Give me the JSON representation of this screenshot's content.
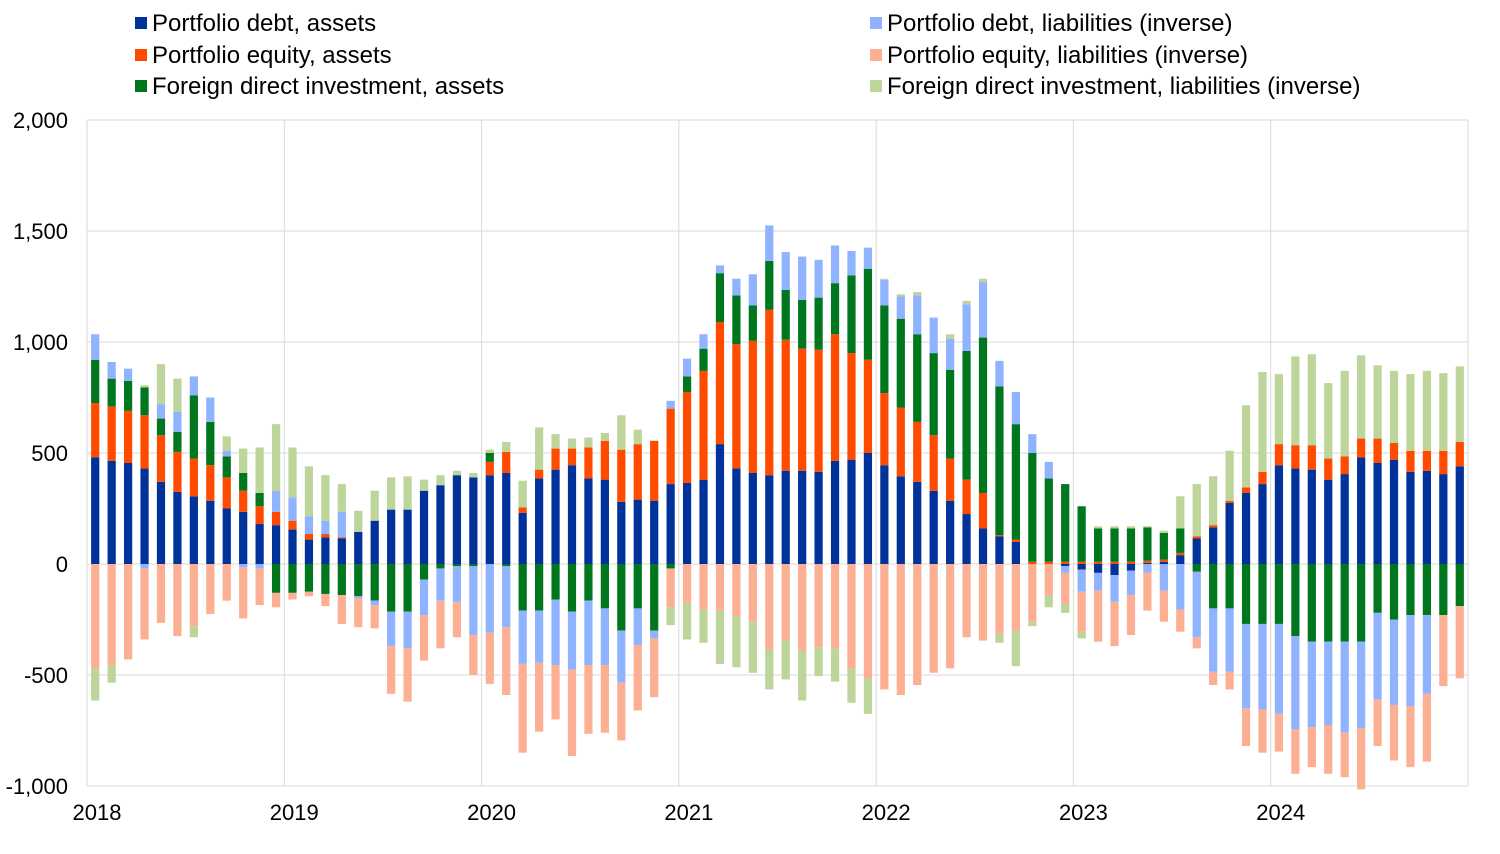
{
  "chart_data": {
    "type": "bar",
    "stacked": true,
    "ylim": [
      -1000,
      2000
    ],
    "y_ticks": [
      2000,
      1500,
      1000,
      500,
      0,
      -500,
      -1000
    ],
    "y_tick_labels": [
      "2,000",
      "1,500",
      "1,000",
      "500",
      "0",
      "-500",
      "-1,000"
    ],
    "x_tick_labels": [
      "2018",
      "2019",
      "2020",
      "2021",
      "2022",
      "2023",
      "2024"
    ],
    "grid": true,
    "legend_position": "top",
    "periods_per_year": 12,
    "series": [
      {
        "name": "Portfolio debt, assets",
        "color": "#003299",
        "values": [
          480,
          465,
          455,
          430,
          370,
          325,
          305,
          285,
          250,
          235,
          180,
          175,
          155,
          110,
          120,
          115,
          145,
          195,
          245,
          245,
          330,
          355,
          400,
          390,
          400,
          410,
          230,
          385,
          425,
          445,
          385,
          380,
          280,
          290,
          285,
          360,
          365,
          380,
          540,
          430,
          410,
          400,
          420,
          420,
          415,
          465,
          470,
          500,
          445,
          395,
          370,
          330,
          285,
          225,
          160,
          125,
          100,
          0,
          0,
          -10,
          -25,
          -40,
          -50,
          -30,
          5,
          10,
          40,
          115,
          165,
          275,
          320,
          360,
          445,
          430,
          425,
          380,
          405,
          480,
          455,
          470,
          415,
          420,
          405,
          440
        ]
      },
      {
        "name": "Portfolio equity, assets",
        "color": "#FF4B00",
        "values": [
          245,
          245,
          235,
          240,
          210,
          180,
          170,
          160,
          140,
          95,
          80,
          60,
          40,
          25,
          15,
          5,
          0,
          0,
          0,
          0,
          0,
          0,
          0,
          0,
          60,
          95,
          25,
          40,
          95,
          75,
          140,
          175,
          235,
          250,
          270,
          340,
          410,
          490,
          550,
          560,
          595,
          745,
          590,
          550,
          550,
          570,
          480,
          420,
          325,
          310,
          270,
          250,
          190,
          155,
          160,
          5,
          10,
          10,
          10,
          10,
          10,
          10,
          10,
          10,
          10,
          10,
          10,
          10,
          10,
          10,
          25,
          55,
          95,
          105,
          110,
          95,
          80,
          85,
          110,
          75,
          95,
          90,
          105,
          110
        ]
      },
      {
        "name": "Foreign direct investment, assets",
        "color": "#00771F",
        "values": [
          195,
          125,
          135,
          125,
          75,
          90,
          285,
          195,
          95,
          80,
          60,
          -130,
          -130,
          -125,
          -135,
          -140,
          -145,
          -165,
          -215,
          -215,
          -70,
          -20,
          -10,
          -10,
          40,
          -10,
          -210,
          -210,
          -160,
          -215,
          -165,
          -200,
          -300,
          -200,
          -300,
          -20,
          70,
          100,
          220,
          220,
          160,
          220,
          225,
          220,
          235,
          230,
          350,
          410,
          395,
          400,
          395,
          370,
          400,
          580,
          700,
          670,
          520,
          490,
          375,
          350,
          250,
          150,
          150,
          150,
          150,
          120,
          110,
          -35,
          -200,
          -200,
          -270,
          -270,
          -270,
          -325,
          -350,
          -350,
          -350,
          -350,
          -220,
          -250,
          -230,
          -230,
          -230,
          -190
        ]
      },
      {
        "name": "Portfolio debt, liabilities (inverse)",
        "color": "#8FB3FF",
        "values": [
          115,
          75,
          55,
          -20,
          65,
          90,
          85,
          110,
          25,
          -15,
          -20,
          95,
          105,
          80,
          60,
          115,
          -10,
          -20,
          -155,
          -165,
          -160,
          -145,
          -160,
          -310,
          -310,
          -275,
          -240,
          -235,
          -295,
          -260,
          -290,
          -255,
          -235,
          -165,
          -35,
          35,
          80,
          65,
          35,
          75,
          140,
          160,
          170,
          195,
          170,
          170,
          110,
          95,
          115,
          100,
          175,
          160,
          140,
          210,
          250,
          115,
          145,
          85,
          75,
          -30,
          -100,
          -80,
          -120,
          -110,
          -40,
          -120,
          -205,
          -295,
          -285,
          -285,
          -380,
          -385,
          -405,
          -420,
          -385,
          -375,
          -410,
          -390,
          -390,
          -385,
          -410,
          -355
        ]
      },
      {
        "name": "Portfolio equity, liabilities (inverse)",
        "color": "#FDAF93",
        "values": [
          -470,
          -455,
          -430,
          -320,
          -265,
          -325,
          -280,
          -225,
          -165,
          -230,
          -165,
          -65,
          -30,
          -20,
          -55,
          -130,
          -130,
          -105,
          -215,
          -240,
          -205,
          -215,
          -160,
          -180,
          -230,
          -305,
          -400,
          -310,
          -245,
          -390,
          -310,
          -305,
          -260,
          -295,
          -265,
          -175,
          -175,
          -205,
          -210,
          -235,
          -260,
          -385,
          -345,
          -390,
          -375,
          -380,
          -470,
          -515,
          -565,
          -590,
          -545,
          -490,
          -470,
          -330,
          -345,
          -315,
          -300,
          -260,
          -140,
          -140,
          -180,
          -230,
          -200,
          -180,
          -170,
          -140,
          -100,
          -50,
          -60,
          -80,
          -170,
          -195,
          -170,
          -200,
          -180,
          -220,
          -200,
          -275,
          -210,
          -250,
          -275,
          -305,
          -320,
          -325
        ]
      },
      {
        "name": "Foreign direct investment, liabilities (inverse)",
        "color": "#BDD49B",
        "values": [
          -145,
          -80,
          0,
          10,
          180,
          150,
          -50,
          0,
          65,
          110,
          205,
          300,
          225,
          225,
          205,
          125,
          95,
          135,
          145,
          150,
          50,
          45,
          20,
          20,
          15,
          45,
          120,
          190,
          65,
          45,
          45,
          35,
          155,
          65,
          0,
          -80,
          -165,
          -150,
          -240,
          -230,
          -230,
          -180,
          -175,
          -225,
          -130,
          -150,
          -155,
          -160,
          5,
          10,
          15,
          0,
          20,
          15,
          15,
          -40,
          -160,
          -20,
          -55,
          -40,
          -30,
          10,
          10,
          10,
          5,
          10,
          145,
          235,
          220,
          225,
          370,
          450,
          315,
          400,
          410,
          340,
          385,
          375,
          330,
          325,
          345,
          360,
          350,
          340
        ]
      }
    ]
  }
}
